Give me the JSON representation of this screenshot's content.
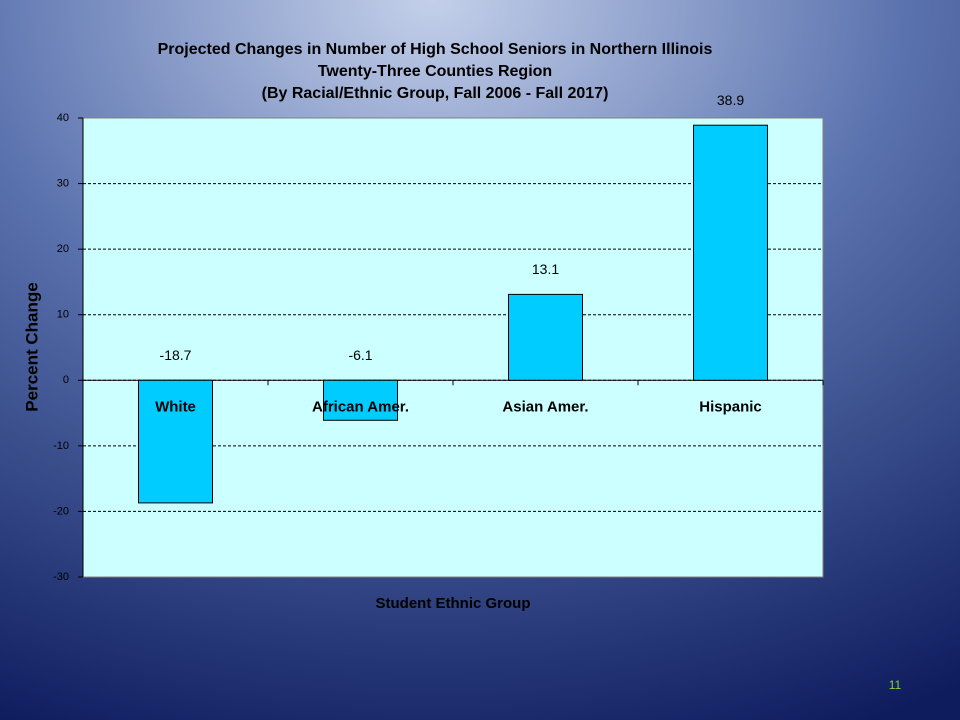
{
  "chart_data": {
    "type": "bar",
    "title_lines": [
      "Projected Changes in Number of High School Seniors in Northern Illinois",
      "Twenty-Three Counties Region",
      "(By Racial/Ethnic Group, Fall 2006 - Fall 2017)"
    ],
    "x_label": "Student Ethnic Group",
    "y_label": "Percent Change",
    "categories": [
      "White",
      "African Amer.",
      "Asian Amer.",
      "Hispanic"
    ],
    "values": [
      -18.7,
      -6.1,
      13.1,
      38.9
    ],
    "color": "#00ccff",
    "ylim": [
      -30,
      40
    ],
    "yticks": [
      -30,
      -20,
      -10,
      0,
      10,
      20,
      30,
      40
    ],
    "grid": true
  },
  "page_number": "11"
}
